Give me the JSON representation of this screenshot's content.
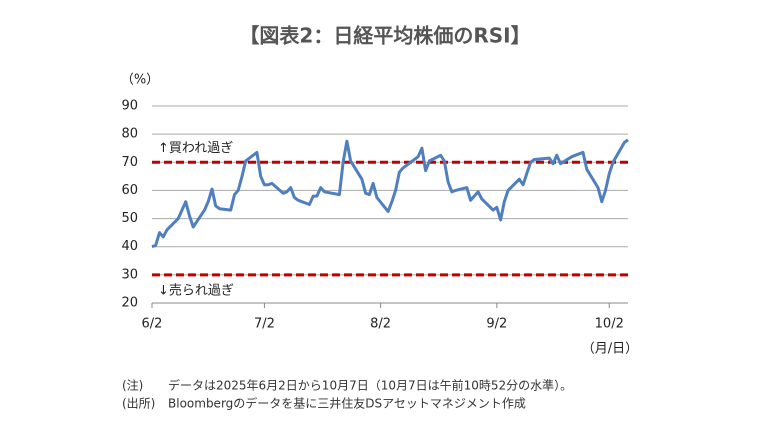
{
  "chart_data": {
    "type": "line",
    "title": "【図表2：日経平均株価のRSI】",
    "y_label": "（%）",
    "x_label": "（月/日）",
    "x": [
      "6/2",
      "6/3",
      "6/4",
      "6/5",
      "6/6",
      "6/9",
      "6/10",
      "6/11",
      "6/12",
      "6/13",
      "6/16",
      "6/17",
      "6/18",
      "6/19",
      "6/20",
      "6/23",
      "6/24",
      "6/25",
      "6/26",
      "6/27",
      "6/30",
      "7/1",
      "7/2",
      "7/3",
      "7/4",
      "7/7",
      "7/8",
      "7/9",
      "7/10",
      "7/11",
      "7/14",
      "7/15",
      "7/16",
      "7/17",
      "7/18",
      "7/22",
      "7/23",
      "7/24",
      "7/25",
      "7/28",
      "7/29",
      "7/30",
      "7/31",
      "8/1",
      "8/4",
      "8/5",
      "8/6",
      "8/7",
      "8/8",
      "8/12",
      "8/13",
      "8/14",
      "8/15",
      "8/18",
      "8/19",
      "8/20",
      "8/21",
      "8/22",
      "8/25",
      "8/26",
      "8/27",
      "8/28",
      "8/29",
      "9/1",
      "9/2",
      "9/3",
      "9/4",
      "9/5",
      "9/8",
      "9/9",
      "9/10",
      "9/11",
      "9/12",
      "9/16",
      "9/17",
      "9/18",
      "9/19",
      "9/22",
      "9/24",
      "9/25",
      "9/26",
      "9/29",
      "9/30",
      "10/1",
      "10/2",
      "10/3",
      "10/6",
      "10/7"
    ],
    "values": [
      40,
      40.5,
      45,
      43.5,
      46,
      50,
      53,
      56,
      51,
      47,
      53,
      56,
      60.5,
      54.5,
      53.5,
      53,
      58.5,
      60,
      65,
      70.5,
      73.5,
      65,
      62,
      62,
      62.5,
      59,
      59.5,
      61,
      57.5,
      56.5,
      55,
      58,
      58,
      61,
      59.5,
      58.5,
      70,
      77.5,
      70.5,
      64,
      59,
      58.5,
      62.5,
      57.5,
      52.5,
      56,
      60,
      66.5,
      68,
      72,
      75,
      67,
      70.5,
      72.5,
      70.5,
      63,
      59.5,
      60,
      61,
      56.5,
      58,
      59.5,
      57,
      53,
      54,
      49.5,
      56,
      60,
      64,
      62,
      66,
      70,
      71,
      71.5,
      69.5,
      72.5,
      69.5,
      72,
      73,
      73.5,
      67.5,
      61,
      56,
      60,
      66,
      70,
      77,
      78
    ],
    "color": "#4f7fbf",
    "xlim": [
      "6/2",
      "10/7"
    ],
    "xticks": [
      "6/2",
      "7/2",
      "8/2",
      "9/2",
      "10/2"
    ],
    "ylim": [
      20,
      90
    ],
    "yticks": [
      20,
      30,
      40,
      50,
      60,
      70,
      80,
      90
    ],
    "grid": true,
    "reference_lines": [
      {
        "value": 70,
        "label": "↑買われ過ぎ",
        "color": "#c00000"
      },
      {
        "value": 30,
        "label": "↓売られ過ぎ",
        "color": "#c00000"
      }
    ],
    "notes": [
      {
        "label": "(注)",
        "text": "データは2025年6月2日から10月7日（10月7日は午前10時52分の水準）。"
      },
      {
        "label": "(出所)",
        "text": "Bloombergのデータを基に三井住友DSアセットマネジメント作成"
      }
    ]
  }
}
